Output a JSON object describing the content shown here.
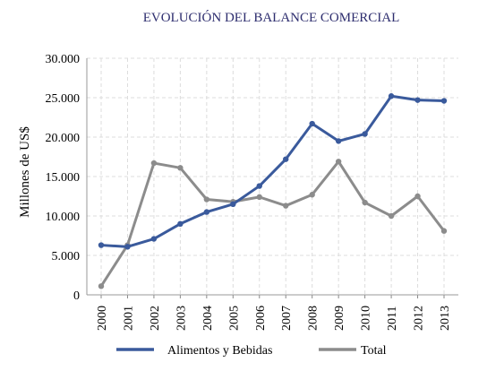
{
  "chart_data": {
    "type": "line",
    "title": "EVOLUCIÓN DEL BALANCE COMERCIAL",
    "ylabel": "Millones de US$",
    "xlabel": "",
    "categories": [
      "2000",
      "2001",
      "2002",
      "2003",
      "2004",
      "2005",
      "2006",
      "2007",
      "2008",
      "2009",
      "2010",
      "2011",
      "2012",
      "2013"
    ],
    "ylim": [
      0,
      30000
    ],
    "yticks": [
      0,
      5000,
      10000,
      15000,
      20000,
      25000,
      30000
    ],
    "ytick_labels": [
      "0",
      "5.000",
      "10.000",
      "15.000",
      "20.000",
      "25.000",
      "30.000"
    ],
    "grid": true,
    "legend_position": "bottom",
    "series": [
      {
        "name": "Alimentos y Bebidas",
        "color": "#3a5a9c",
        "values": [
          6300,
          6100,
          7100,
          9000,
          10500,
          11500,
          13800,
          17200,
          21700,
          19500,
          20400,
          25200,
          24700,
          24600
        ]
      },
      {
        "name": "Total",
        "color": "#8c8c8c",
        "values": [
          1100,
          6300,
          16700,
          16100,
          12100,
          11800,
          12400,
          11300,
          12700,
          16900,
          11700,
          10000,
          12500,
          8100
        ]
      }
    ]
  }
}
